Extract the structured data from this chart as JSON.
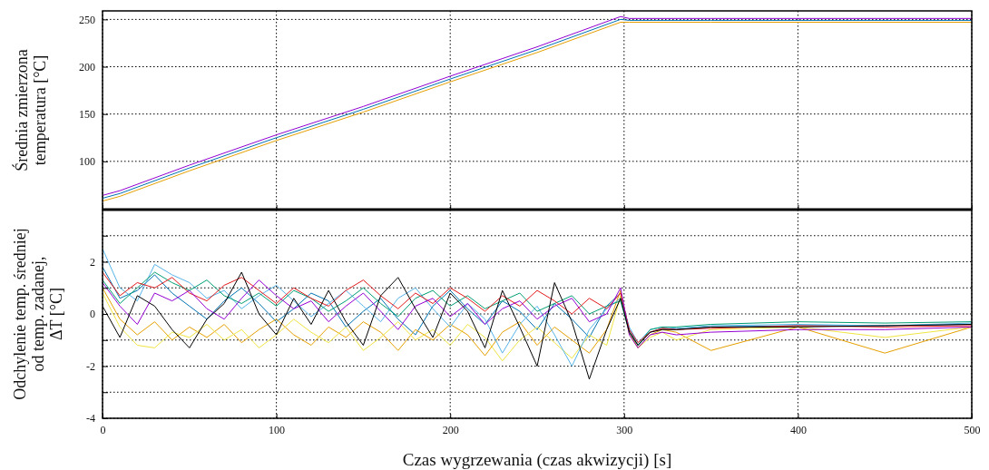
{
  "chart_data": [
    {
      "type": "line",
      "ylabel": "Średnia zmierzona\ntemperatura [°C]",
      "x": [
        0,
        10,
        50,
        100,
        150,
        200,
        250,
        298,
        303,
        350,
        500
      ],
      "xlim": [
        0,
        500
      ],
      "xticks": [
        0,
        100,
        200,
        300,
        400,
        500
      ],
      "ylim": [
        49,
        259
      ],
      "yticks": [
        100,
        150,
        200,
        250
      ],
      "grid": true,
      "tick_labels": "y",
      "series": [
        {
          "color": "#e69f00",
          "values": [
            58,
            63,
            90,
            122,
            152,
            184,
            215,
            247,
            247,
            247,
            247
          ]
        },
        {
          "color": "#0072b2",
          "values": [
            61,
            66,
            93,
            125,
            155,
            187,
            218,
            250,
            249,
            249,
            249
          ]
        },
        {
          "color": "#9400d3",
          "values": [
            64,
            69,
            96,
            128,
            158,
            190,
            221,
            253,
            251,
            251,
            251
          ]
        }
      ]
    },
    {
      "type": "line",
      "xlabel": "Czas wygrzewania (czas akwizycji) [s]",
      "ylabel": "Odchylenie temp. średniej\nod temp. zadanej,\nΔT [°C]",
      "x": [
        0,
        10,
        20,
        30,
        40,
        50,
        60,
        70,
        80,
        90,
        100,
        110,
        120,
        130,
        140,
        150,
        160,
        170,
        180,
        190,
        200,
        210,
        220,
        230,
        240,
        250,
        260,
        270,
        280,
        290,
        298,
        303,
        308,
        315,
        322,
        330,
        350,
        400,
        450,
        500
      ],
      "xlim": [
        0,
        500
      ],
      "xticks": [
        0,
        100,
        200,
        300,
        400,
        500
      ],
      "ylim": [
        -4,
        4
      ],
      "yticks": [
        -4,
        {
          "value": -3,
          "label": null
        },
        -2,
        {
          "value": -1,
          "label": null
        },
        0,
        {
          "value": 1,
          "label": null
        },
        2,
        {
          "value": 3,
          "label": null
        }
      ],
      "grid": true,
      "series": [
        {
          "color": "#0072b2",
          "values": [
            1.8,
            0.6,
            0.9,
            1.5,
            0.8,
            0.3,
            -0.2,
            0.5,
            1.0,
            0.4,
            -0.3,
            0.2,
            0.8,
            0.5,
            -0.5,
            0.1,
            0.6,
            -0.2,
            -0.8,
            0.3,
            0.9,
            0.2,
            -0.4,
            0.5,
            0.1,
            -0.6,
            0.4,
            -0.2,
            -0.9,
            0.3,
            0.8,
            -0.6,
            -1.2,
            -0.7,
            -0.55,
            -0.6,
            -0.5,
            -0.45,
            -0.45,
            -0.4
          ]
        },
        {
          "color": "#e69f00",
          "values": [
            1.0,
            -0.2,
            -0.8,
            -0.3,
            -1.0,
            -0.5,
            -0.9,
            -0.4,
            -1.1,
            -0.6,
            -0.2,
            -0.8,
            -1.2,
            -0.5,
            -0.9,
            -0.3,
            -0.7,
            -1.4,
            -0.6,
            -1.0,
            -0.4,
            -0.8,
            -1.6,
            -0.7,
            -0.3,
            -1.2,
            -0.5,
            -1.0,
            -1.5,
            -0.6,
            0.9,
            -0.7,
            -1.3,
            -0.8,
            -0.6,
            -0.7,
            -1.4,
            -0.5,
            -1.5,
            -0.5
          ]
        },
        {
          "color": "#f0e442",
          "values": [
            0.8,
            -0.5,
            -1.2,
            -1.3,
            -0.7,
            -0.9,
            -0.4,
            -1.0,
            -0.6,
            -1.3,
            -0.8,
            -0.2,
            -0.7,
            -1.1,
            -0.5,
            -1.4,
            -0.9,
            -0.3,
            -1.0,
            -0.6,
            -1.2,
            -0.4,
            -0.9,
            -1.8,
            -1.0,
            -0.5,
            -1.1,
            -1.7,
            -0.8,
            -1.2,
            0.7,
            -0.8,
            -1.3,
            -0.9,
            -0.7,
            -1.0,
            -0.6,
            -0.5,
            -0.9,
            -0.5
          ]
        },
        {
          "color": "#56b4e9",
          "values": [
            2.5,
            1.0,
            0.5,
            1.9,
            1.5,
            1.2,
            0.6,
            0.9,
            0.2,
            0.7,
            1.1,
            0.5,
            -0.1,
            0.4,
            0.9,
            0.3,
            -0.3,
            0.6,
            1.0,
            0.2,
            -0.5,
            0.4,
            -0.2,
            -1.5,
            -0.4,
            0.3,
            -0.8,
            -2.0,
            -0.6,
            0.2,
            0.6,
            -0.5,
            -1.1,
            -0.6,
            -0.5,
            -0.55,
            -0.45,
            -0.4,
            -0.45,
            -0.35
          ]
        },
        {
          "color": "#009e73",
          "values": [
            1.3,
            0.4,
            1.0,
            1.6,
            1.2,
            0.9,
            1.3,
            0.7,
            0.4,
            0.8,
            0.3,
            0.9,
            0.6,
            0.1,
            0.5,
            1.0,
            0.4,
            -0.1,
            0.6,
            0.9,
            0.3,
            0.7,
            0.2,
            0.5,
            0.8,
            0.1,
            0.4,
            0.7,
            0.0,
            0.3,
            0.5,
            -0.7,
            -1.2,
            -0.6,
            -0.5,
            -0.5,
            -0.4,
            -0.3,
            -0.35,
            -0.3
          ]
        },
        {
          "color": "#e41a1c",
          "values": [
            1.6,
            0.7,
            1.2,
            1.0,
            1.4,
            0.8,
            0.5,
            1.1,
            1.4,
            0.9,
            0.4,
            1.0,
            0.6,
            0.3,
            0.9,
            1.3,
            0.7,
            0.2,
            0.8,
            0.4,
            1.0,
            0.6,
            0.1,
            0.7,
            0.3,
            0.9,
            0.5,
            0.0,
            0.6,
            0.2,
            0.8,
            -0.6,
            -1.1,
            -0.7,
            -0.55,
            -0.6,
            -0.55,
            -0.45,
            -0.5,
            -0.45
          ]
        },
        {
          "color": "#9400d3",
          "values": [
            1.2,
            0.3,
            -0.4,
            0.8,
            0.5,
            0.9,
            0.2,
            -0.2,
            0.6,
            1.3,
            0.7,
            0.2,
            0.5,
            -0.3,
            0.3,
            0.8,
            0.1,
            -0.6,
            0.3,
            0.6,
            -0.1,
            0.4,
            -0.4,
            0.2,
            0.5,
            -0.2,
            0.3,
            0.6,
            -0.3,
            0.0,
            1.0,
            -0.8,
            -1.3,
            -0.8,
            -0.7,
            -0.8,
            -0.7,
            -0.6,
            -0.6,
            -0.5
          ]
        },
        {
          "color": "#000000",
          "values": [
            0.3,
            -0.9,
            0.7,
            0.3,
            -0.6,
            -1.3,
            -0.2,
            0.4,
            1.6,
            0.0,
            -0.8,
            0.6,
            -0.4,
            0.9,
            -0.3,
            -1.2,
            0.7,
            1.4,
            0.2,
            -0.9,
            0.8,
            0.1,
            -1.3,
            0.9,
            -0.5,
            -2.0,
            1.2,
            -0.3,
            -2.5,
            -0.6,
            0.6,
            -0.7,
            -1.2,
            -0.7,
            -0.6,
            -0.6,
            -0.5,
            -0.5,
            -0.45,
            -0.4
          ]
        }
      ]
    }
  ]
}
